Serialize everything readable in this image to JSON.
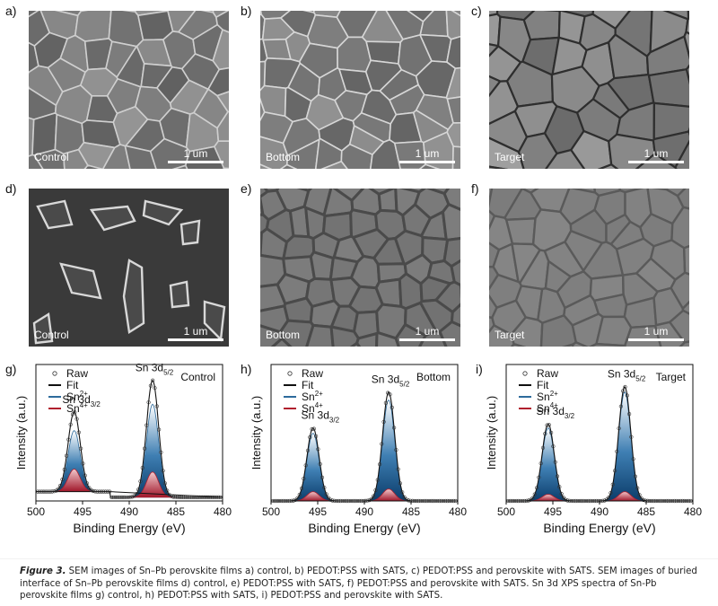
{
  "figure": {
    "sem_panels": [
      {
        "label": "a)",
        "sample": "Control",
        "scale": "1 um"
      },
      {
        "label": "b)",
        "sample": "Bottom",
        "scale": "1 um"
      },
      {
        "label": "c)",
        "sample": "Target",
        "scale": "1 um"
      },
      {
        "label": "d)",
        "sample": "Control",
        "scale": "1 um"
      },
      {
        "label": "e)",
        "sample": "Bottom",
        "scale": "1 um"
      },
      {
        "label": "f)",
        "sample": "Target",
        "scale": "1 um"
      }
    ],
    "caption": {
      "lead": "Figure 3.",
      "text": " SEM images of Sn–Pb perovskite films a) control, b) PEDOT:PSS with SATS, c) PEDOT:PSS and perovskite with SATS. SEM images of buried interface of Sn–Pb perovskite films d) control, e) PEDOT:PSS with SATS, f) PEDOT:PSS and perovskite with SATS. Sn 3d XPS spectra of Sn-Pb perovskite films g) control, h) PEDOT:PSS with SATS, i) PEDOT:PSS and perovskite with SATS."
    }
  },
  "chart_data": [
    {
      "type": "line",
      "panel": "g)",
      "title": "Control",
      "xlabel": "Binding Energy (eV)",
      "ylabel": "Intensity (a.u.)",
      "xlim": [
        500,
        480
      ],
      "xticks": [
        500,
        495,
        490,
        485,
        480
      ],
      "legend": [
        "Raw",
        "Fit",
        "Sn2+",
        "Sn4+"
      ],
      "annotations": [
        "Sn 3d3/2",
        "Sn 3d5/2"
      ],
      "peaks": [
        {
          "name": "Sn 3d3/2",
          "center": 495.9,
          "fit": 0.6,
          "sn2": 0.46,
          "sn4": 0.17
        },
        {
          "name": "Sn 3d5/2",
          "center": 487.5,
          "fit": 0.88,
          "sn2": 0.7,
          "sn4": 0.19
        }
      ],
      "background": 0.07
    },
    {
      "type": "line",
      "panel": "h)",
      "title": "Bottom",
      "xlabel": "Binding Energy (eV)",
      "ylabel": "Intensity (a.u.)",
      "xlim": [
        500,
        480
      ],
      "xticks": [
        500,
        495,
        490,
        485,
        480
      ],
      "legend": [
        "Raw",
        "Fit",
        "Sn2+",
        "Sn4+"
      ],
      "annotations": [
        "Sn 3d3/2",
        "Sn 3d5/2"
      ],
      "peaks": [
        {
          "name": "Sn 3d3/2",
          "center": 495.5,
          "fit": 0.55,
          "sn2": 0.51,
          "sn4": 0.07
        },
        {
          "name": "Sn 3d5/2",
          "center": 487.4,
          "fit": 0.82,
          "sn2": 0.76,
          "sn4": 0.09
        }
      ],
      "background": 0.0
    },
    {
      "type": "line",
      "panel": "i)",
      "title": "Target",
      "xlabel": "Binding Energy (eV)",
      "ylabel": "Intensity (a.u.)",
      "xlim": [
        500,
        480
      ],
      "xticks": [
        500,
        495,
        490,
        485,
        480
      ],
      "legend": [
        "Raw",
        "Fit",
        "Sn2+",
        "Sn4+"
      ],
      "annotations": [
        "Sn 3d3/2",
        "Sn 3d5/2"
      ],
      "peaks": [
        {
          "name": "Sn 3d3/2",
          "center": 495.5,
          "fit": 0.58,
          "sn2": 0.55,
          "sn4": 0.05
        },
        {
          "name": "Sn 3d5/2",
          "center": 487.3,
          "fit": 0.86,
          "sn2": 0.82,
          "sn4": 0.07
        }
      ],
      "background": 0.0
    }
  ]
}
